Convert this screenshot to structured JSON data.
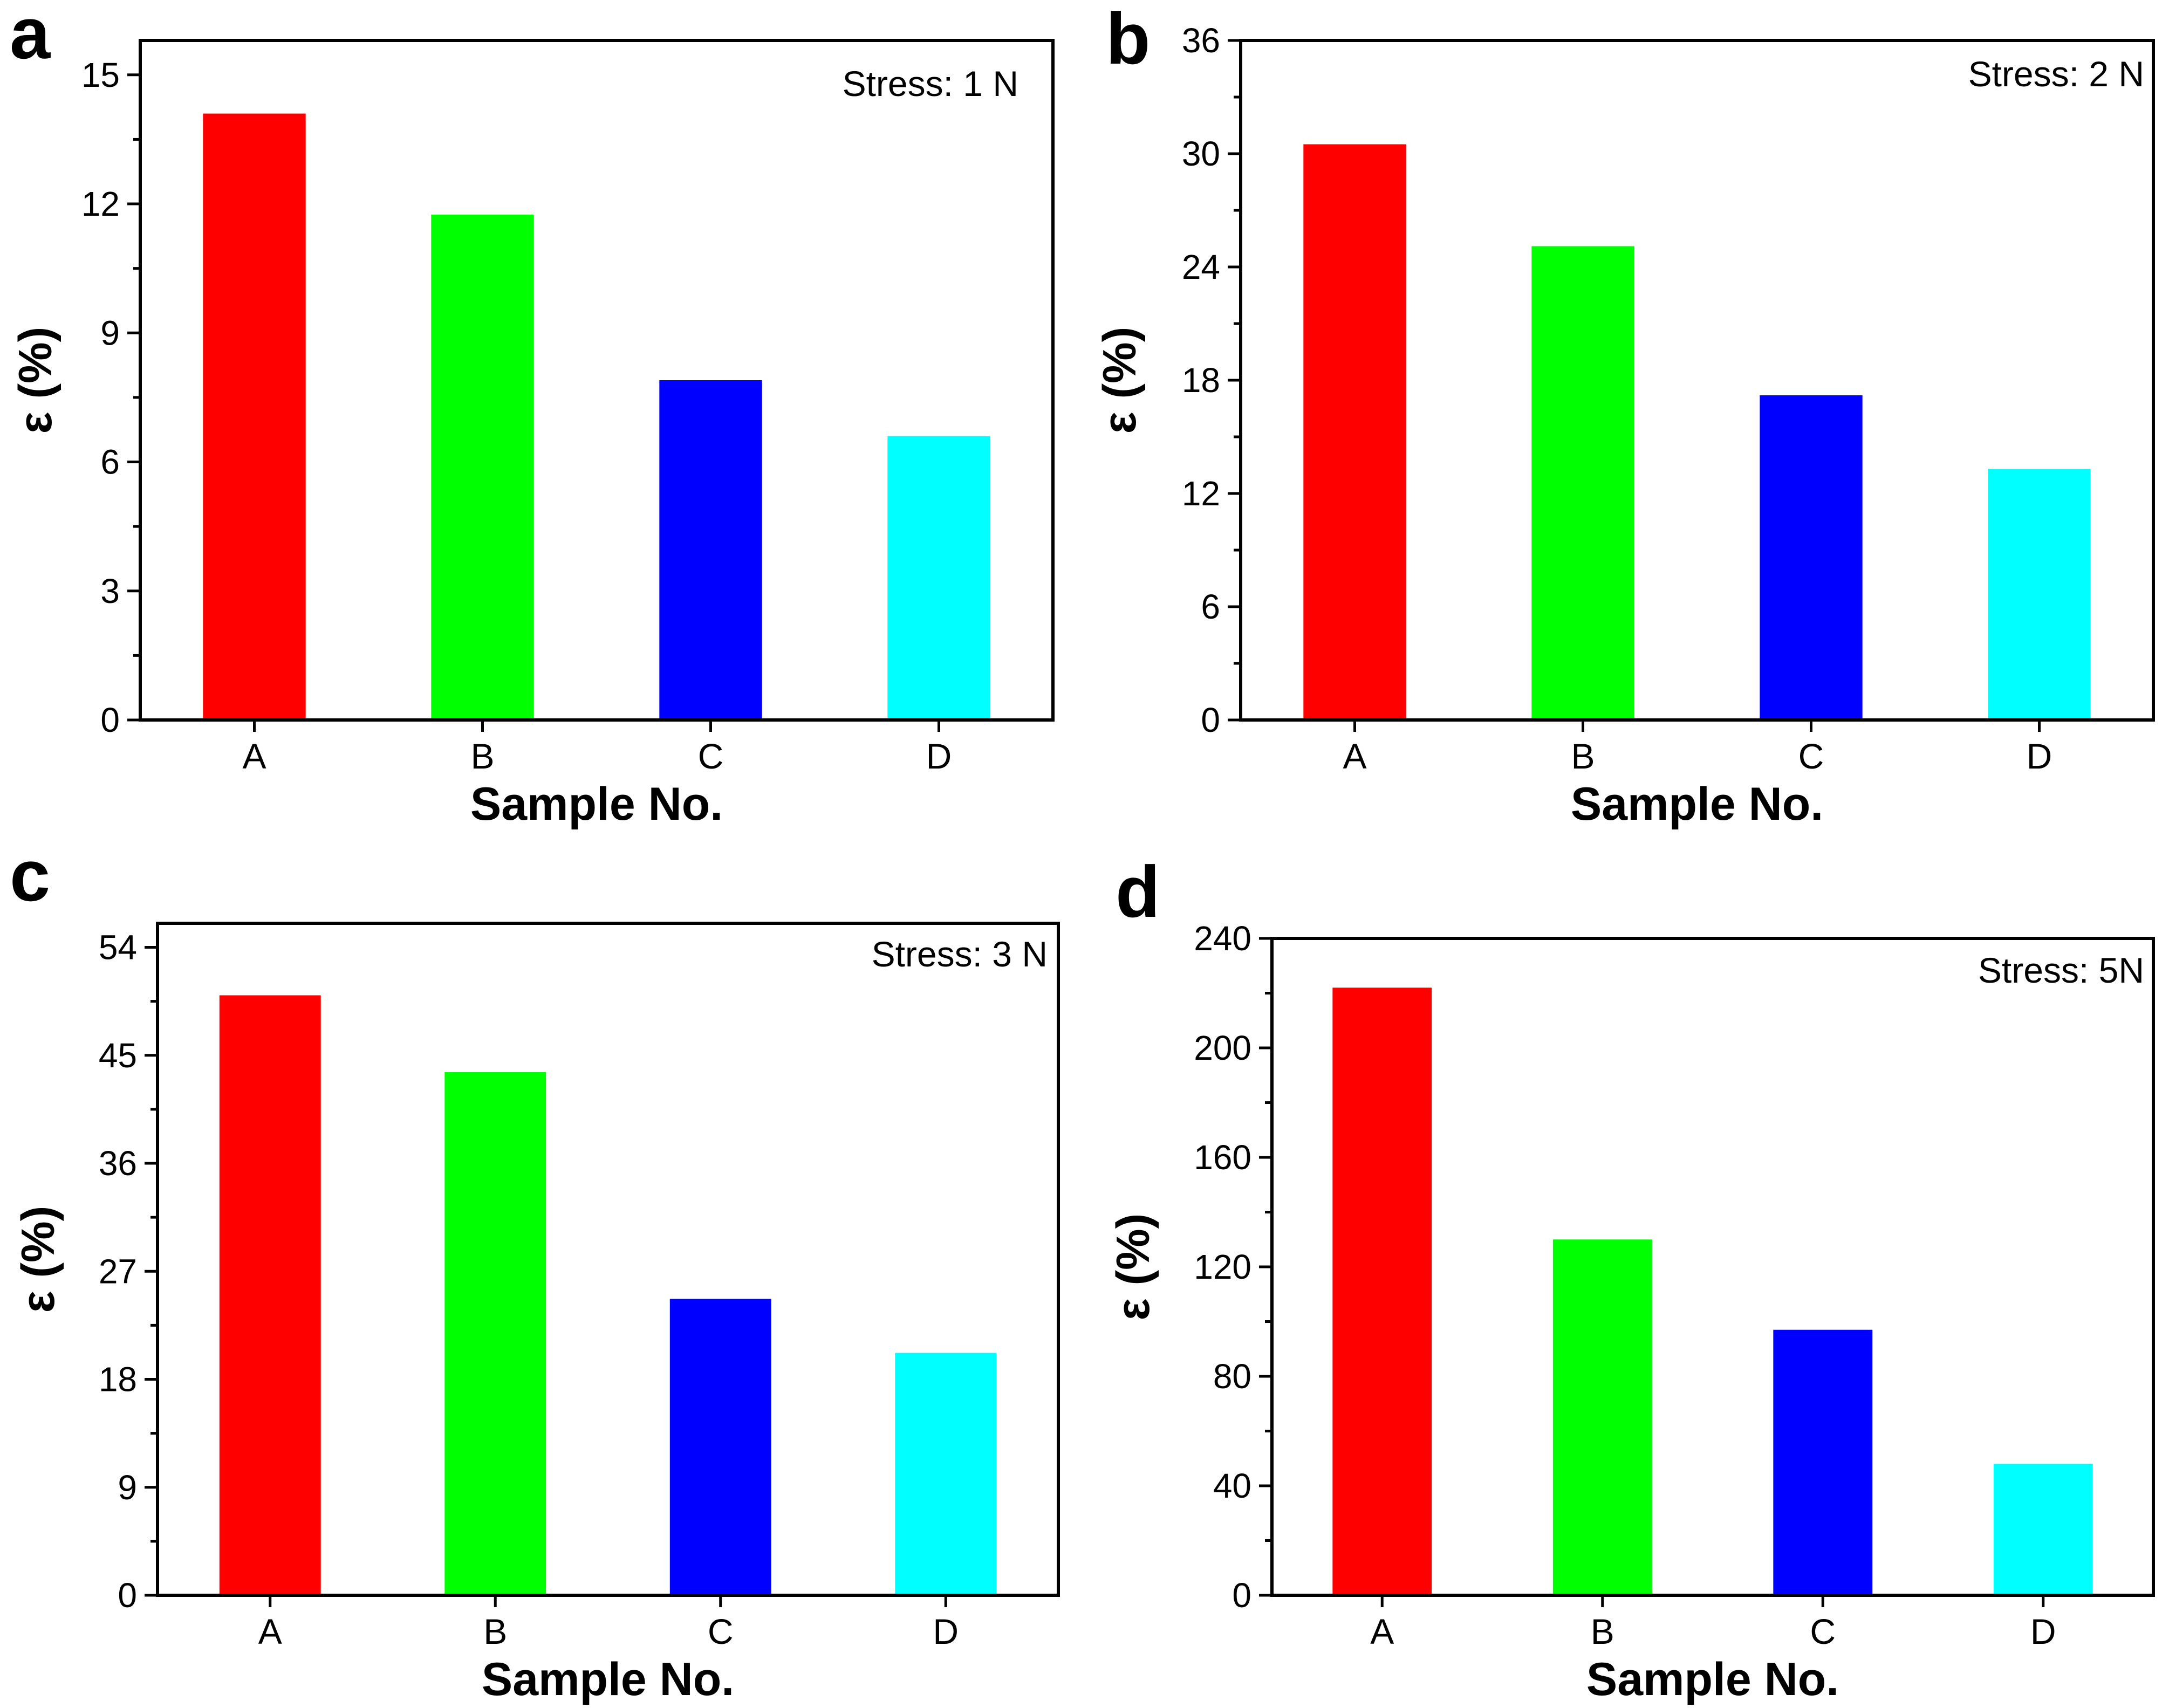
{
  "chart_data": [
    {
      "type": "bar",
      "panel": "a",
      "annotation": "Stress: 1 N",
      "categories": [
        "A",
        "B",
        "C",
        "D"
      ],
      "values": [
        14.1,
        11.75,
        7.9,
        6.6
      ],
      "colors": [
        "#ff0000",
        "#00ff00",
        "#0000ff",
        "#00ffff"
      ],
      "xlabel": "Sample No.",
      "ylabel": "ε (%)",
      "ylim": [
        0,
        15.8
      ],
      "yticks": [
        0,
        3,
        6,
        9,
        12,
        15
      ],
      "ytick_labels": [
        "0",
        "3",
        "6",
        "9",
        "12",
        "15"
      ],
      "minor_step": 1.5
    },
    {
      "type": "bar",
      "panel": "b",
      "annotation": "Stress: 2 N",
      "categories": [
        "A",
        "B",
        "C",
        "D"
      ],
      "values": [
        30.5,
        25.1,
        17.2,
        13.3
      ],
      "colors": [
        "#ff0000",
        "#00ff00",
        "#0000ff",
        "#00ffff"
      ],
      "xlabel": "Sample No.",
      "ylabel": "ε (%)",
      "ylim": [
        0,
        36
      ],
      "yticks": [
        0,
        6,
        12,
        18,
        24,
        30,
        36
      ],
      "ytick_labels": [
        "0",
        "6",
        "12",
        "18",
        "24",
        "30",
        "36"
      ],
      "minor_step": 3
    },
    {
      "type": "bar",
      "panel": "c",
      "annotation": "Stress: 3 N",
      "categories": [
        "A",
        "B",
        "C",
        "D"
      ],
      "values": [
        50.0,
        43.6,
        24.7,
        20.2
      ],
      "colors": [
        "#ff0000",
        "#00ff00",
        "#0000ff",
        "#00ffff"
      ],
      "xlabel": "Sample No.",
      "ylabel": "ε (%)",
      "ylim": [
        0,
        56
      ],
      "yticks": [
        0,
        9,
        18,
        27,
        36,
        45,
        54
      ],
      "ytick_labels": [
        "0",
        "9",
        "18",
        "27",
        "36",
        "45",
        "54"
      ],
      "minor_step": 4.5
    },
    {
      "type": "bar",
      "panel": "d",
      "annotation": "Stress: 5N",
      "categories": [
        "A",
        "B",
        "C",
        "D"
      ],
      "values": [
        222,
        130,
        97,
        48
      ],
      "colors": [
        "#ff0000",
        "#00ff00",
        "#0000ff",
        "#00ffff"
      ],
      "xlabel": "Sample No.",
      "ylabel": "ε (%)",
      "ylim": [
        0,
        240
      ],
      "yticks": [
        0,
        40,
        80,
        120,
        160,
        200,
        240
      ],
      "ytick_labels": [
        "0",
        "40",
        "80",
        "120",
        "160",
        "200",
        "240"
      ],
      "minor_step": 20
    }
  ]
}
